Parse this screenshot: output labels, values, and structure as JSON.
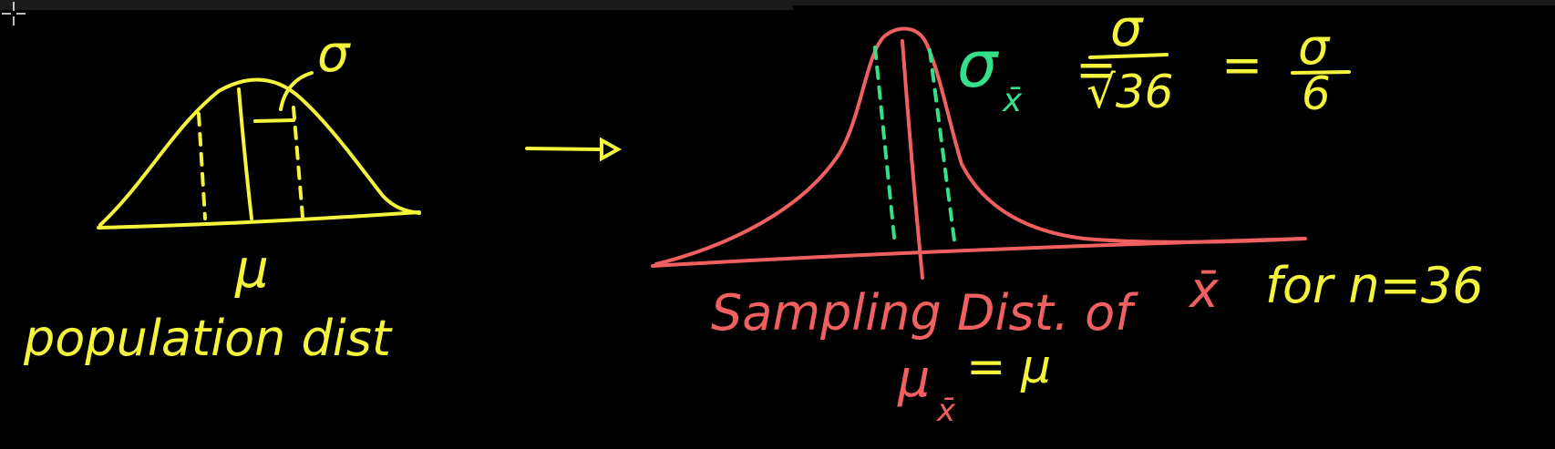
{
  "colors": {
    "background": "#000000",
    "yellow": "#f4f43c",
    "red": "#f06060",
    "green": "#35e08a"
  },
  "population": {
    "sigma_label": "σ",
    "mu_label": "μ",
    "caption": "population dist"
  },
  "sampling": {
    "caption_prefix": "Sampling Dist. of",
    "xbar": "x̄",
    "caption_suffix": "for n=36",
    "mean_lhs": "μ",
    "mean_sub": "x̄",
    "mean_rhs": "= μ"
  },
  "formula": {
    "sigma": "σ",
    "sub": "x̄",
    "eq1": "=",
    "num1": "σ",
    "den1": "√36",
    "eq2": "=",
    "num2": "σ",
    "den2": "6"
  },
  "icons": {
    "arrow": "arrow-right-icon",
    "cursor": "crosshair-cursor-icon"
  }
}
